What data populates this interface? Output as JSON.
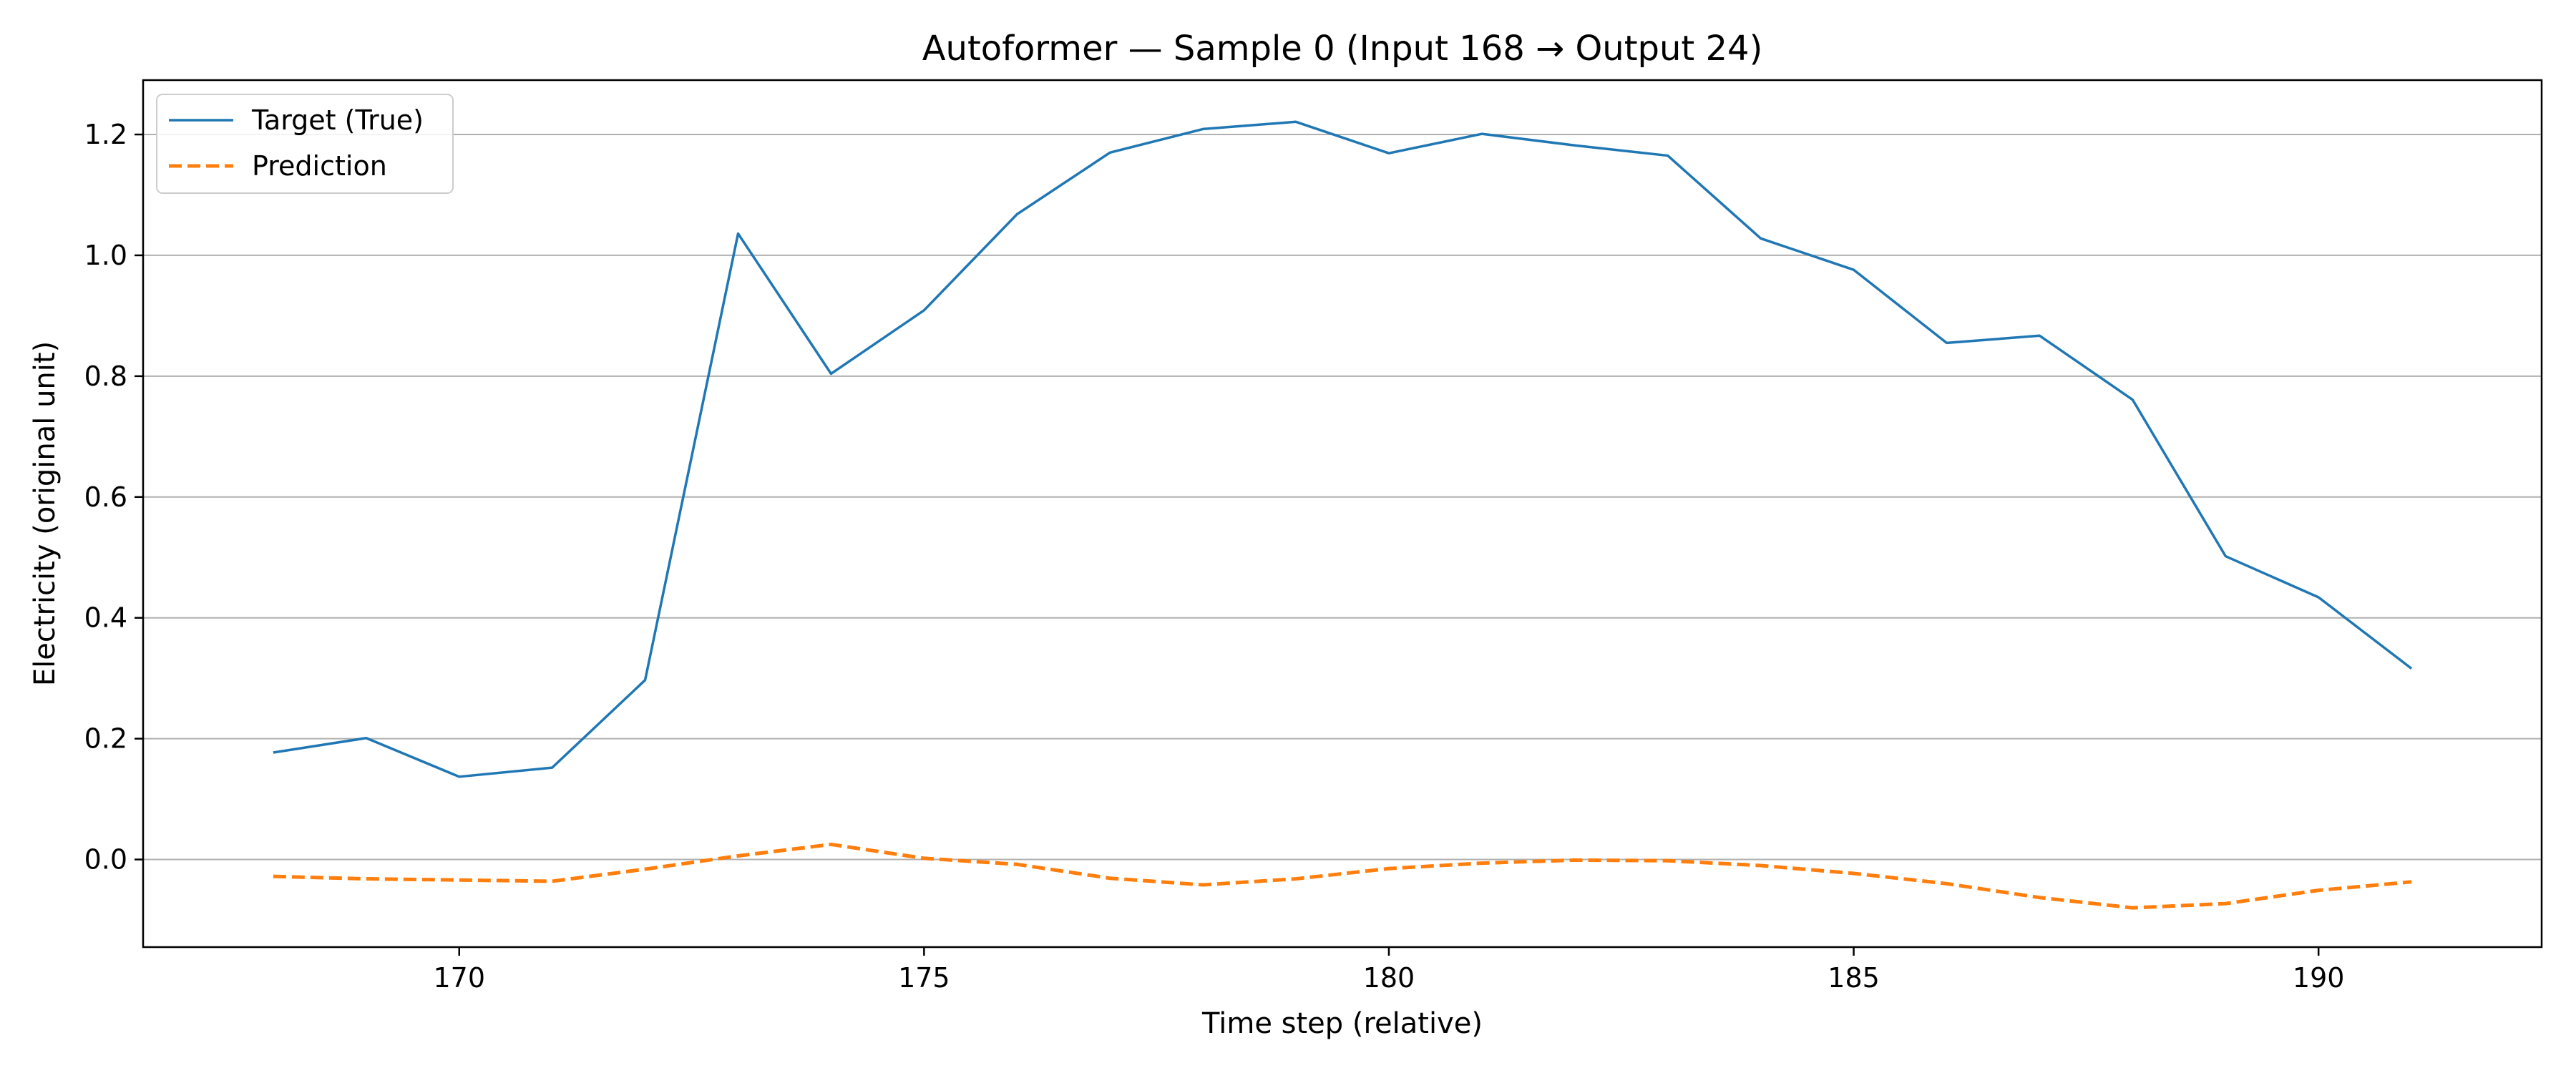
{
  "chart_data": {
    "type": "line",
    "title": "Autoformer — Sample 0 (Input 168 → Output 24)",
    "xlabel": "Time step (relative)",
    "ylabel": "Electricity (original unit)",
    "x": [
      168,
      169,
      170,
      171,
      172,
      173,
      174,
      175,
      176,
      177,
      178,
      179,
      180,
      181,
      182,
      183,
      184,
      185,
      186,
      187,
      188,
      189,
      190,
      191
    ],
    "xlim": [
      166.6,
      192.4
    ],
    "ylim": [
      -0.145,
      1.29
    ],
    "xticks": [
      170,
      175,
      180,
      185,
      190
    ],
    "yticks": [
      0.0,
      0.2,
      0.4,
      0.6,
      0.8,
      1.0,
      1.2
    ],
    "xtick_labels": [
      "170",
      "175",
      "180",
      "185",
      "190"
    ],
    "ytick_labels": [
      "0.0",
      "0.2",
      "0.4",
      "0.6",
      "0.8",
      "1.0",
      "1.2"
    ],
    "grid": "horizontal",
    "legend_position": "top-left",
    "series": [
      {
        "name": "Target (True)",
        "color": "#1f77b4",
        "style": "solid",
        "values": [
          0.177,
          0.201,
          0.137,
          0.152,
          0.297,
          1.036,
          0.804,
          0.909,
          1.068,
          1.17,
          1.209,
          1.221,
          1.169,
          1.201,
          1.182,
          1.165,
          1.028,
          0.976,
          0.855,
          0.867,
          0.761,
          0.502,
          0.434,
          0.316
        ]
      },
      {
        "name": "Prediction",
        "color": "#ff7f0e",
        "style": "dashed",
        "values": [
          -0.028,
          -0.032,
          -0.034,
          -0.036,
          -0.016,
          0.006,
          0.025,
          0.002,
          -0.008,
          -0.031,
          -0.042,
          -0.032,
          -0.015,
          -0.006,
          -0.001,
          -0.002,
          -0.01,
          -0.023,
          -0.04,
          -0.063,
          -0.08,
          -0.073,
          -0.051,
          -0.037
        ]
      }
    ]
  }
}
